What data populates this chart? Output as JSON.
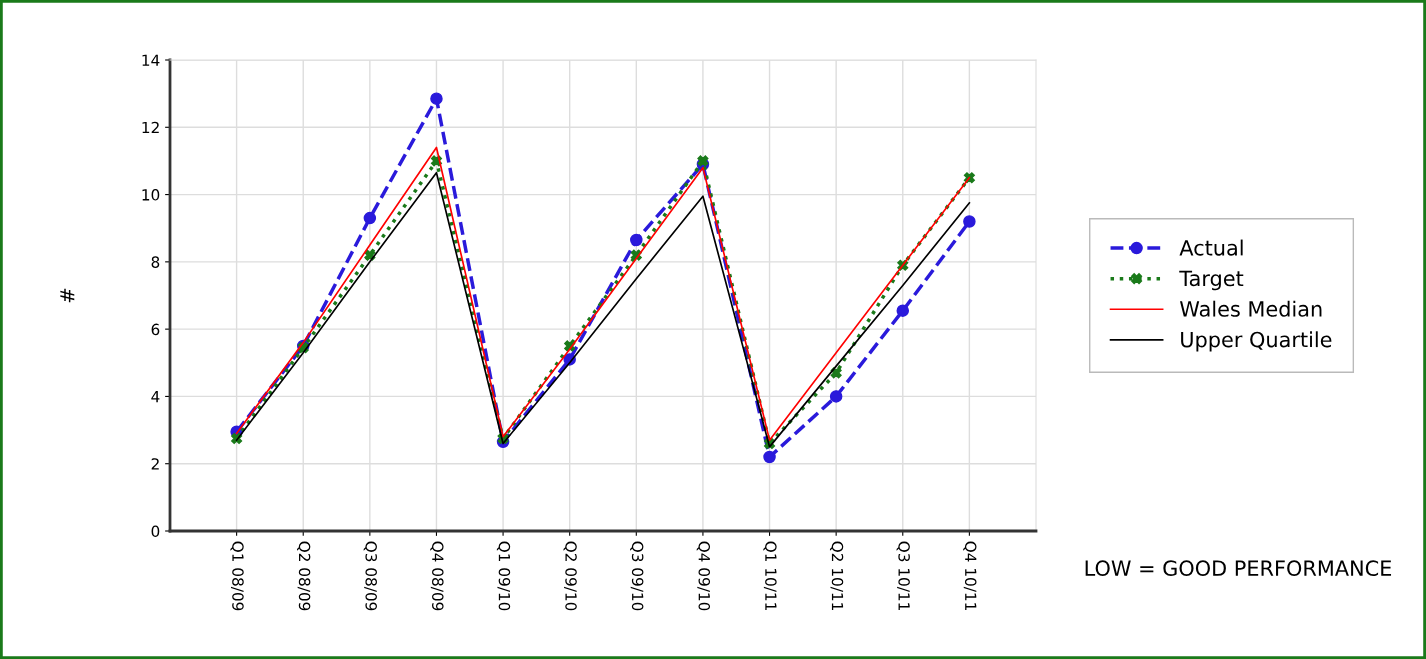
{
  "chart_data": {
    "type": "line",
    "ylabel": "#",
    "categories": [
      "Q1 08/09",
      "Q2 08/09",
      "Q3 08/09",
      "Q4 08/09",
      "Q1 09/10",
      "Q2 09/10",
      "Q3 09/10",
      "Q4 09/10",
      "Q1 10/11",
      "Q2 10/11",
      "Q3 10/11",
      "Q4 10/11"
    ],
    "series": [
      {
        "name": "Actual",
        "color": "#2a1adb",
        "marker": "circle",
        "line_style": "dashed",
        "values": [
          2.95,
          5.5,
          9.3,
          12.85,
          2.65,
          5.1,
          8.65,
          10.9,
          2.2,
          4.0,
          6.55,
          9.2
        ]
      },
      {
        "name": "Target",
        "color": "#1a7a1a",
        "marker": "cross",
        "line_style": "dotted",
        "values": [
          2.75,
          5.45,
          8.2,
          11.0,
          2.75,
          5.5,
          8.2,
          11.0,
          2.6,
          4.7,
          7.9,
          10.5
        ]
      },
      {
        "name": "Wales Median",
        "color": "#ff0000",
        "marker": "none",
        "line_style": "solid",
        "values": [
          2.9,
          5.6,
          8.5,
          11.4,
          2.8,
          5.4,
          8.1,
          10.8,
          2.7,
          5.3,
          7.9,
          10.5
        ]
      },
      {
        "name": "Upper Quartile",
        "color": "#000000",
        "marker": "none",
        "line_style": "solid",
        "values": [
          2.7,
          5.3,
          8.0,
          10.65,
          2.6,
          5.0,
          7.5,
          9.95,
          2.5,
          4.9,
          7.3,
          9.75
        ]
      }
    ],
    "ylim": [
      0,
      14
    ],
    "yticks": [
      0,
      2,
      4,
      6,
      8,
      10,
      12,
      14
    ],
    "grid": true,
    "legend": "right",
    "annotations": [
      "LOW = GOOD PERFORMANCE"
    ]
  }
}
